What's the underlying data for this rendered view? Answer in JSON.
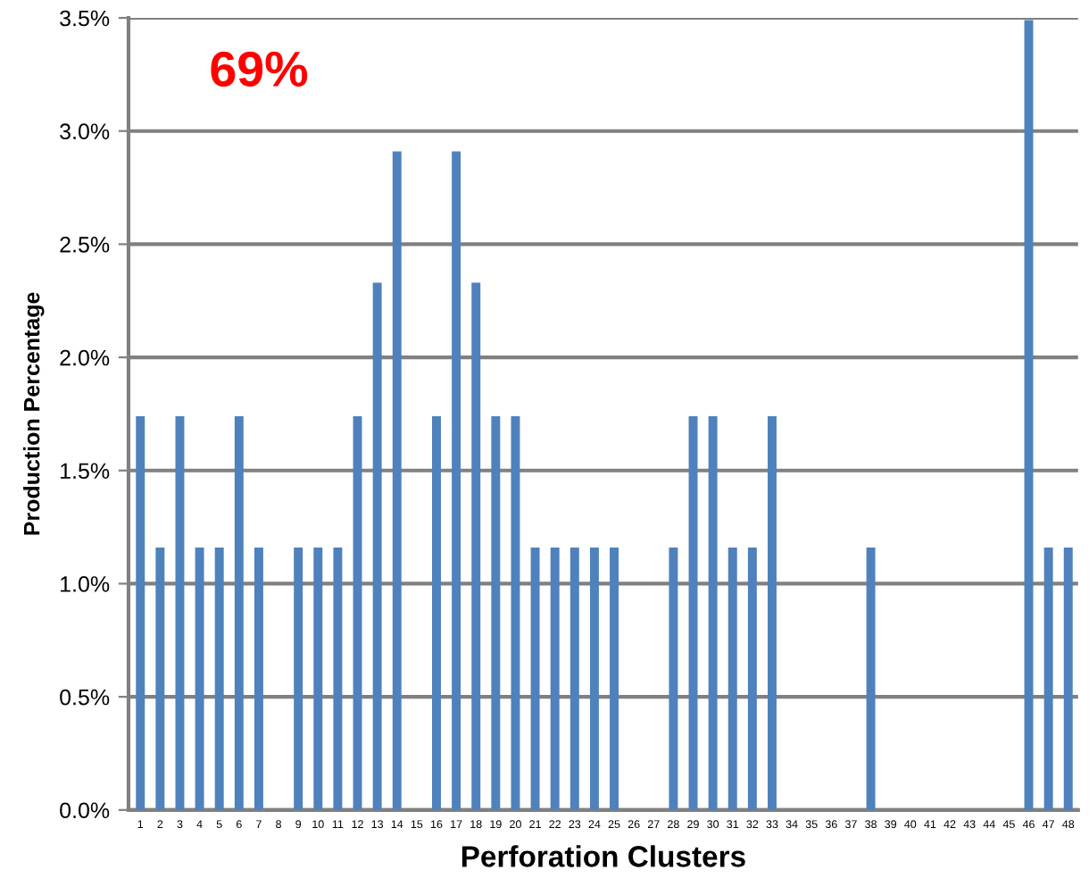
{
  "chart_data": {
    "type": "bar",
    "xlabel": "Perforation Clusters",
    "ylabel": "Production Percentage",
    "categories": [
      "1",
      "2",
      "3",
      "4",
      "5",
      "6",
      "7",
      "8",
      "9",
      "10",
      "11",
      "12",
      "13",
      "14",
      "15",
      "16",
      "17",
      "18",
      "19",
      "20",
      "21",
      "22",
      "23",
      "24",
      "25",
      "26",
      "27",
      "28",
      "29",
      "30",
      "31",
      "32",
      "33",
      "34",
      "35",
      "36",
      "37",
      "38",
      "39",
      "40",
      "41",
      "42",
      "43",
      "44",
      "45",
      "46",
      "47",
      "48"
    ],
    "values": [
      1.74,
      1.16,
      1.74,
      1.16,
      1.16,
      1.74,
      1.16,
      0,
      1.16,
      1.16,
      1.16,
      1.74,
      2.33,
      2.91,
      0,
      1.74,
      2.91,
      2.33,
      1.74,
      1.74,
      1.16,
      1.16,
      1.16,
      1.16,
      1.16,
      0,
      0,
      1.16,
      1.74,
      1.74,
      1.16,
      1.16,
      1.74,
      0,
      0,
      0,
      0,
      1.16,
      0,
      0,
      0,
      0,
      0,
      0,
      0,
      3.49,
      1.16,
      1.16
    ],
    "color": "#4f81bd",
    "ylim": [
      0,
      3.5
    ],
    "yticks": [
      {
        "value": 0,
        "label": "0.0%"
      },
      {
        "value": 0.5,
        "label": "0.5%"
      },
      {
        "value": 1,
        "label": "1.0%"
      },
      {
        "value": 1.5,
        "label": "1.5%"
      },
      {
        "value": 2,
        "label": "2.0%"
      },
      {
        "value": 2.5,
        "label": "2.5%"
      },
      {
        "value": 3,
        "label": "3.0%"
      },
      {
        "value": 3.5,
        "label": "3.5%"
      }
    ],
    "grid": "y",
    "annotations": [
      "69%"
    ]
  }
}
